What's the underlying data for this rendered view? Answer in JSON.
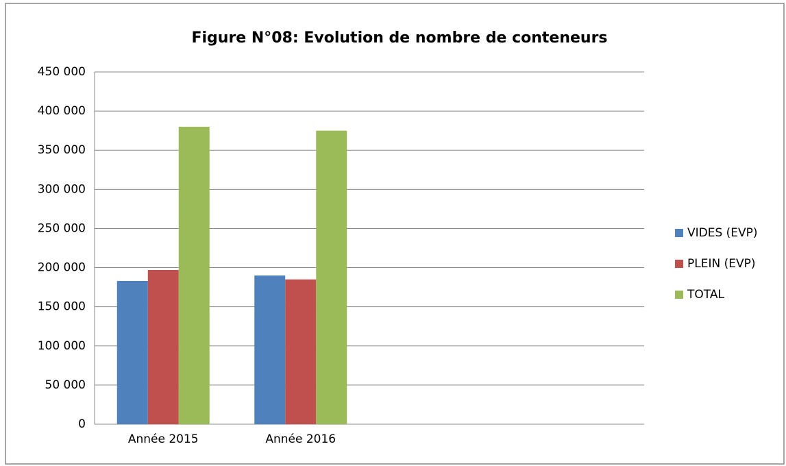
{
  "chart_data": {
    "type": "bar",
    "title": "Figure N°08: Evolution de nombre de conteneurs",
    "categories": [
      "Année 2015",
      "Année 2016",
      null,
      null
    ],
    "series": [
      {
        "name": "VIDES (EVP)",
        "color": "#4f81bd",
        "values": [
          183000,
          190000,
          null,
          null
        ]
      },
      {
        "name": "PLEIN (EVP)",
        "color": "#c0504d",
        "values": [
          197000,
          185000,
          null,
          null
        ]
      },
      {
        "name": "TOTAL",
        "color": "#9bbb59",
        "values": [
          380000,
          375000,
          null,
          null
        ]
      }
    ],
    "ylim": [
      0,
      450000
    ],
    "yticks": [
      0,
      {
        "value": 50000,
        "label": "50 000"
      },
      {
        "value": 100000,
        "label": "100 000"
      },
      {
        "value": 150000,
        "label": "150 000"
      },
      {
        "value": 200000,
        "label": "200 000"
      },
      {
        "value": 250000,
        "label": "250 000"
      },
      {
        "value": 300000,
        "label": "300 000"
      },
      {
        "value": 350000,
        "label": "350 000"
      },
      {
        "value": 400000,
        "label": "400 000"
      },
      {
        "value": 450000,
        "label": "450 000"
      }
    ],
    "grid": true,
    "legend": "right"
  }
}
